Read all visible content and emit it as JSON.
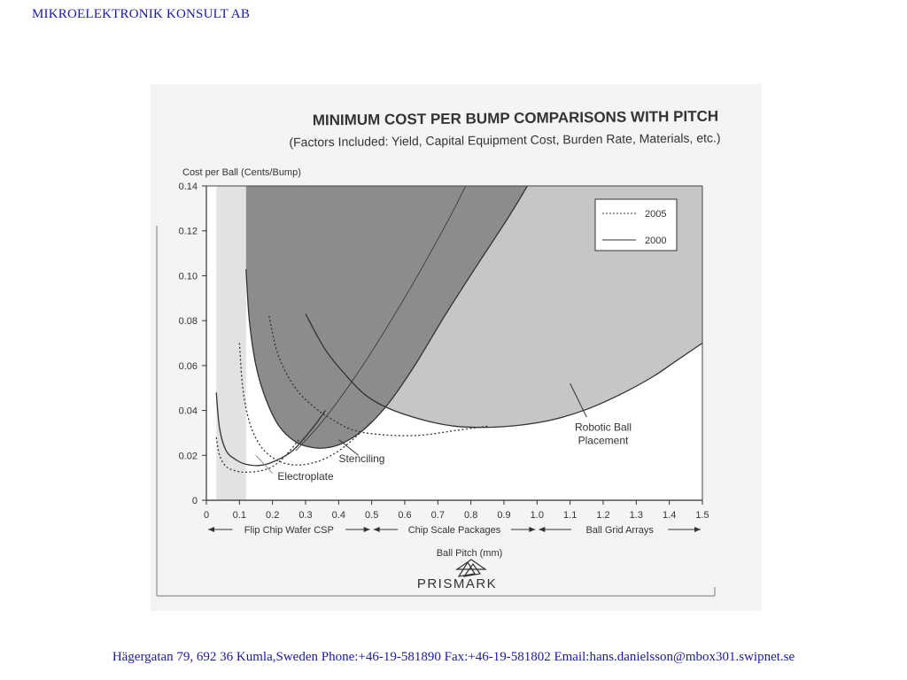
{
  "header": {
    "company": "MIKROELEKTRONIK KONSULT AB"
  },
  "footer": {
    "contact": "Hägergatan 79, 692 36 Kumla,Sweden  Phone:+46-19-581890   Fax:+46-19-581802   Email:hans.danielsson@mbox301.swipnet.se"
  },
  "colors": {
    "background": "#ffffff",
    "header_text": "#1a1aa8",
    "region_dark": "#8c8c8c",
    "region_light": "#c6c6c6",
    "region_lightest": "#e2e2e2"
  },
  "chart_data": {
    "type": "line",
    "title": "MINIMUM COST PER BUMP COMPARISONS WITH PITCH",
    "subtitle": "(Factors Included: Yield, Capital Equipment Cost, Burden Rate, Materials, etc.)",
    "ylabel": "Cost per Ball (Cents/Bump)",
    "xlabel": "Ball Pitch (mm)",
    "xlim": [
      0,
      1.5
    ],
    "ylim": [
      0,
      0.14
    ],
    "x_ticks": [
      "0",
      "0.1",
      "0.2",
      "0.3",
      "0.4",
      "0.5",
      "0.6",
      "0.7",
      "0.8",
      "0.9",
      "1.0",
      "1.1",
      "1.2",
      "1.3",
      "1.4",
      "1.5"
    ],
    "y_ticks": [
      "0",
      "0.02",
      "0.04",
      "0.06",
      "0.08",
      "0.10",
      "0.12",
      "0.14"
    ],
    "legend": {
      "position": "top-right",
      "entries": [
        {
          "label": "2005",
          "style": "dotted"
        },
        {
          "label": "2000",
          "style": "solid"
        }
      ]
    },
    "regions": [
      {
        "label": "Flip Chip Wafer CSP",
        "from": 0,
        "to": 0.5
      },
      {
        "label": "Chip Scale Packages",
        "from": 0.5,
        "to": 1.0
      },
      {
        "label": "Ball Grid Arrays",
        "from": 1.0,
        "to": 1.5
      }
    ],
    "series": [
      {
        "name": "Electroplate",
        "year": "2000",
        "x": [
          0.03,
          0.04,
          0.06,
          0.09,
          0.12,
          0.16,
          0.2,
          0.26,
          0.32,
          0.36
        ],
        "y": [
          0.048,
          0.032,
          0.022,
          0.018,
          0.016,
          0.0155,
          0.017,
          0.022,
          0.032,
          0.04
        ]
      },
      {
        "name": "Electroplate",
        "year": "2005",
        "x": [
          0.03,
          0.04,
          0.06,
          0.09,
          0.12,
          0.16,
          0.2,
          0.24,
          0.28
        ],
        "y": [
          0.028,
          0.02,
          0.015,
          0.013,
          0.0125,
          0.013,
          0.015,
          0.02,
          0.027
        ]
      },
      {
        "name": "Stenciling",
        "year": "2000",
        "x": [
          0.12,
          0.13,
          0.15,
          0.18,
          0.22,
          0.27,
          0.32,
          0.37,
          0.42,
          0.48,
          0.55,
          0.63,
          0.72,
          0.82,
          0.93,
          1.05
        ],
        "y": [
          0.103,
          0.08,
          0.06,
          0.045,
          0.033,
          0.026,
          0.0235,
          0.0235,
          0.026,
          0.032,
          0.043,
          0.06,
          0.082,
          0.105,
          0.13,
          0.16
        ]
      },
      {
        "name": "Stenciling",
        "year": "2005",
        "x": [
          0.1,
          0.11,
          0.13,
          0.16,
          0.2,
          0.25,
          0.3,
          0.35,
          0.4,
          0.45,
          0.5
        ],
        "y": [
          0.07,
          0.05,
          0.035,
          0.025,
          0.019,
          0.016,
          0.016,
          0.018,
          0.022,
          0.028,
          0.035
        ]
      },
      {
        "name": "Robotic Ball Placement",
        "year": "2000",
        "x": [
          0.3,
          0.36,
          0.42,
          0.48,
          0.55,
          0.65,
          0.75,
          0.85,
          0.95,
          1.05,
          1.15,
          1.25,
          1.35,
          1.42,
          1.5
        ],
        "y": [
          0.083,
          0.067,
          0.056,
          0.047,
          0.041,
          0.036,
          0.033,
          0.0325,
          0.0335,
          0.036,
          0.0405,
          0.047,
          0.055,
          0.062,
          0.07
        ]
      },
      {
        "name": "Robotic Ball Placement",
        "year": "2005",
        "x": [
          0.19,
          0.21,
          0.24,
          0.28,
          0.33,
          0.38,
          0.45,
          0.55,
          0.65,
          0.75,
          0.85
        ],
        "y": [
          0.082,
          0.068,
          0.057,
          0.048,
          0.041,
          0.036,
          0.031,
          0.029,
          0.029,
          0.031,
          0.033
        ]
      },
      {
        "name": "Boundary",
        "year": "2000",
        "x": [
          0.27,
          0.35,
          0.45,
          0.55,
          0.65,
          0.75,
          0.8
        ],
        "y": [
          0.022,
          0.035,
          0.055,
          0.078,
          0.103,
          0.13,
          0.145
        ]
      }
    ],
    "annotations": [
      {
        "text": "Robotic Ball",
        "x": 1.2,
        "y": 0.031
      },
      {
        "text": "Placement",
        "x": 1.2,
        "y": 0.025
      },
      {
        "text": "Stenciling",
        "x": 0.47,
        "y": 0.017
      },
      {
        "text": "Electroplate",
        "x": 0.3,
        "y": 0.009
      }
    ],
    "brand": "PRISMARK"
  }
}
